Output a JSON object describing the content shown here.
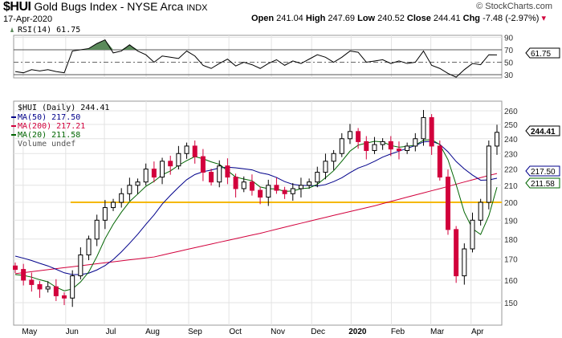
{
  "header": {
    "symbol": "$HUI",
    "name": "Gold Bugs Index - NYSE Arca",
    "exchange": "INDX",
    "date": "17-Apr-2020",
    "copyright": "© StockCharts.com",
    "open_label": "Open",
    "open": "241.04",
    "high_label": "High",
    "high": "247.69",
    "low_label": "Low",
    "low": "240.52",
    "close_label": "Close",
    "close": "244.41",
    "chg_label": "Chg",
    "chg": "-7.48 (-2.97%)"
  },
  "rsi_legend": "RSI(14) 61.75",
  "price_legend": {
    "main": "$HUI (Daily) 244.41",
    "ma50": "MA(50) 217.50",
    "ma200": "MA(200) 217.21",
    "ma20": "MA(20) 211.58",
    "volume": "Volume undef"
  },
  "flags": {
    "close": "244.41",
    "ma50": "217.50",
    "ma20": "211.58",
    "rsi": "61.75"
  },
  "colors": {
    "ma50": "#00008b",
    "ma200": "#d2003c",
    "ma20": "#006400",
    "up": "#000000",
    "down": "#d2003c",
    "support": "#f5b800",
    "rsi_fill": "#5b8a5b"
  },
  "chart_data": {
    "type": "candlestick",
    "title": "$HUI Gold Bugs Index - NYSE Arca INDX",
    "x_ticks": [
      "May",
      "Jun",
      "Jul",
      "Aug",
      "Sep",
      "Oct",
      "Nov",
      "Dec",
      "2020",
      "Feb",
      "Mar",
      "Apr"
    ],
    "price_ticks": [
      150,
      160,
      170,
      180,
      190,
      200,
      210,
      220,
      230,
      240,
      250,
      260
    ],
    "price_range": [
      141,
      268
    ],
    "scale": "log",
    "rsi_ticks": [
      30,
      50,
      70,
      90
    ],
    "rsi_range": [
      20,
      100
    ],
    "support_level": 200,
    "closes": [
      165,
      160,
      158,
      156,
      157,
      153,
      152,
      162,
      172,
      180,
      190,
      197,
      200,
      205,
      210,
      212,
      220,
      215,
      225,
      222,
      230,
      235,
      228,
      218,
      212,
      222,
      215,
      208,
      212,
      207,
      203,
      210,
      207,
      205,
      208,
      210,
      212,
      218,
      225,
      230,
      240,
      245,
      238,
      232,
      236,
      238,
      233,
      232,
      235,
      240,
      255,
      235,
      215,
      185,
      162,
      175,
      190,
      200,
      235,
      244.41
    ],
    "ma200_points": [
      [
        0,
        163
      ],
      [
        17,
        171
      ],
      [
        30,
        183
      ],
      [
        44,
        198
      ],
      [
        52,
        208
      ],
      [
        58,
        216
      ],
      [
        59,
        217.21
      ]
    ],
    "rsi": [
      35,
      33,
      38,
      36,
      38,
      35,
      33,
      68,
      70,
      72,
      80,
      86,
      65,
      68,
      78,
      68,
      62,
      50,
      60,
      58,
      56,
      68,
      60,
      45,
      40,
      48,
      55,
      44,
      50,
      46,
      40,
      48,
      54,
      45,
      52,
      48,
      55,
      62,
      58,
      50,
      58,
      68,
      66,
      50,
      52,
      54,
      48,
      52,
      48,
      50,
      68,
      45,
      40,
      32,
      26,
      38,
      48,
      46,
      62,
      61.75
    ]
  }
}
